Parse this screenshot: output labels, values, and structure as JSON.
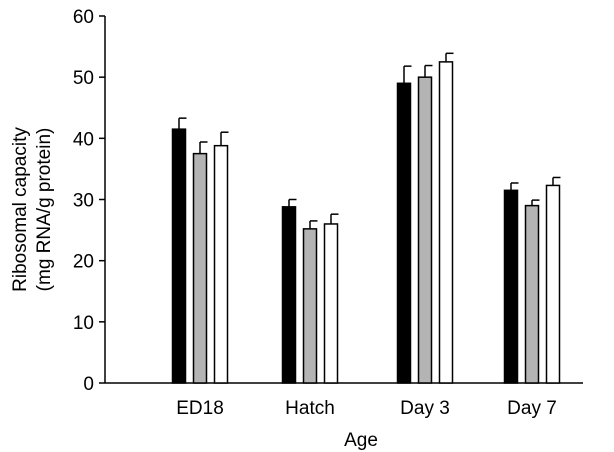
{
  "chart_data": {
    "type": "bar",
    "xlabel": "Age",
    "ylabel_lines": [
      "Ribosomal capacity",
      "(mg RNA/g protein)"
    ],
    "ylim": [
      0,
      60
    ],
    "yticks": [
      0,
      10,
      20,
      30,
      40,
      50,
      60
    ],
    "categories": [
      "ED18",
      "Hatch",
      "Day 3",
      "Day 7"
    ],
    "grid": false,
    "legend": "none",
    "series": [
      {
        "color": "#000000",
        "values": [
          41.5,
          28.8,
          49.0,
          31.5
        ],
        "errors": [
          1.8,
          1.2,
          2.8,
          1.2
        ]
      },
      {
        "color": "#b4b4b4",
        "values": [
          37.5,
          25.2,
          50.0,
          29.0
        ],
        "errors": [
          1.9,
          1.3,
          1.9,
          0.9
        ]
      },
      {
        "color": "#ffffff",
        "values": [
          38.8,
          26.0,
          52.5,
          32.3
        ],
        "errors": [
          2.2,
          1.6,
          1.4,
          1.3
        ]
      }
    ]
  }
}
